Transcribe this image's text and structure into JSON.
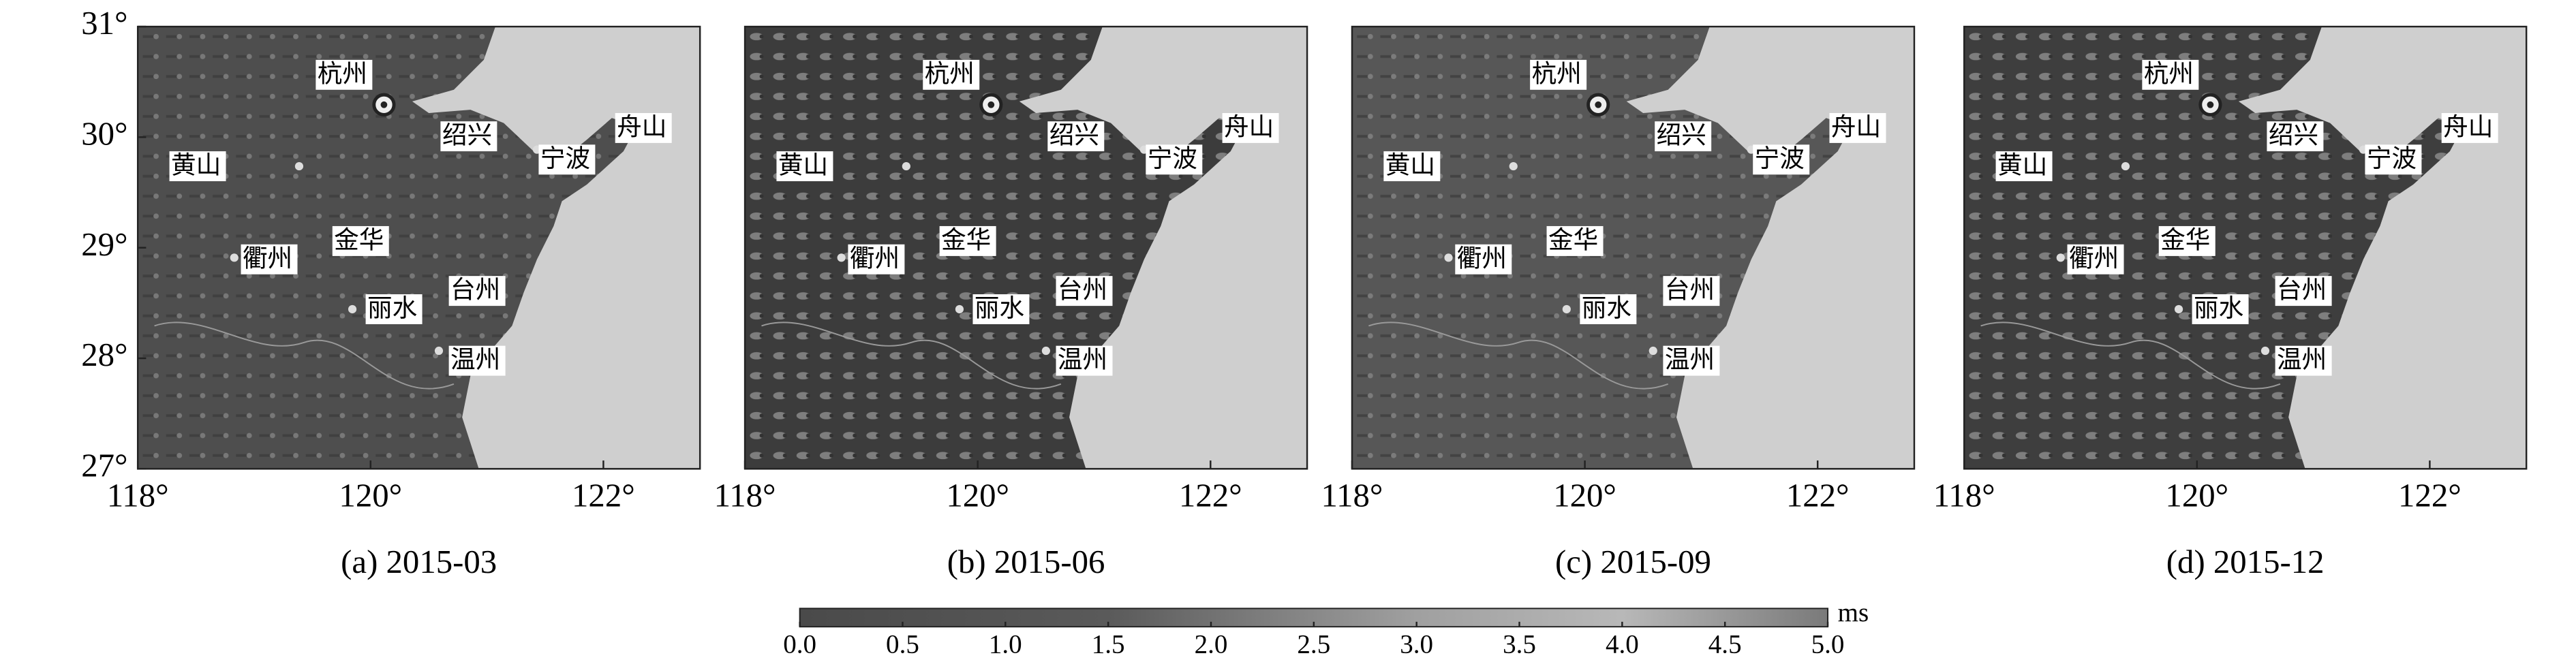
{
  "panels": [
    {
      "caption": "(a) 2015-03"
    },
    {
      "caption": "(b) 2015-06"
    },
    {
      "caption": "(c) 2015-09"
    },
    {
      "caption": "(d) 2015-12"
    }
  ],
  "cities": [
    "杭州",
    "绍兴",
    "宁波",
    "舟山",
    "黄山",
    "金华",
    "衢州",
    "丽水",
    "台州",
    "温州"
  ],
  "xlim": [
    118,
    122.83
  ],
  "ylim": [
    27,
    31
  ],
  "xticks": [
    {
      "value": 118,
      "label": "118°"
    },
    {
      "value": 120,
      "label": "120°"
    },
    {
      "value": 122,
      "label": "122°"
    }
  ],
  "yticks": [
    {
      "value": 27,
      "label": "27°"
    },
    {
      "value": 28,
      "label": "28°"
    },
    {
      "value": 29,
      "label": "29°"
    },
    {
      "value": 30,
      "label": "30°"
    },
    {
      "value": 31,
      "label": "31°"
    }
  ],
  "colorbar": {
    "label": "ms",
    "lim": [
      0,
      5
    ],
    "ticks": [
      {
        "value": 0,
        "label": "0.0"
      },
      0.5,
      {
        "value": 1,
        "label": "1.0"
      },
      1.5,
      {
        "value": 2,
        "label": "2.0"
      },
      2.5,
      {
        "value": 3,
        "label": "3.0"
      },
      3.5,
      {
        "value": 4,
        "label": "4.0"
      },
      4.5,
      {
        "value": 5,
        "label": "5.0"
      }
    ]
  }
}
